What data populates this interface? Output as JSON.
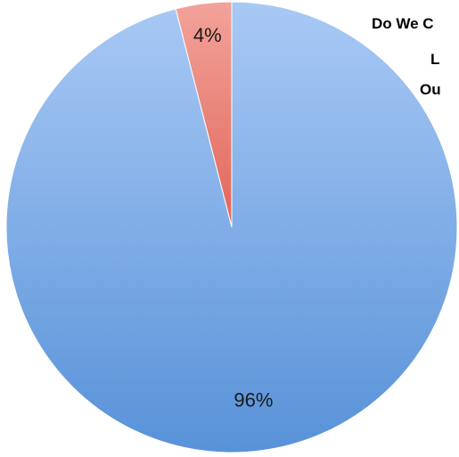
{
  "chart_data": {
    "type": "pie",
    "title_lines": [
      "Do We C",
      "L",
      "Ou"
    ],
    "slices": [
      {
        "label": "4%",
        "value": 4,
        "color_top": "#f3a39a",
        "color_bottom": "#e0665a"
      },
      {
        "label": "96%",
        "value": 96,
        "color_top": "#a9c9f5",
        "color_bottom": "#5892d8"
      }
    ],
    "legend": "none"
  }
}
